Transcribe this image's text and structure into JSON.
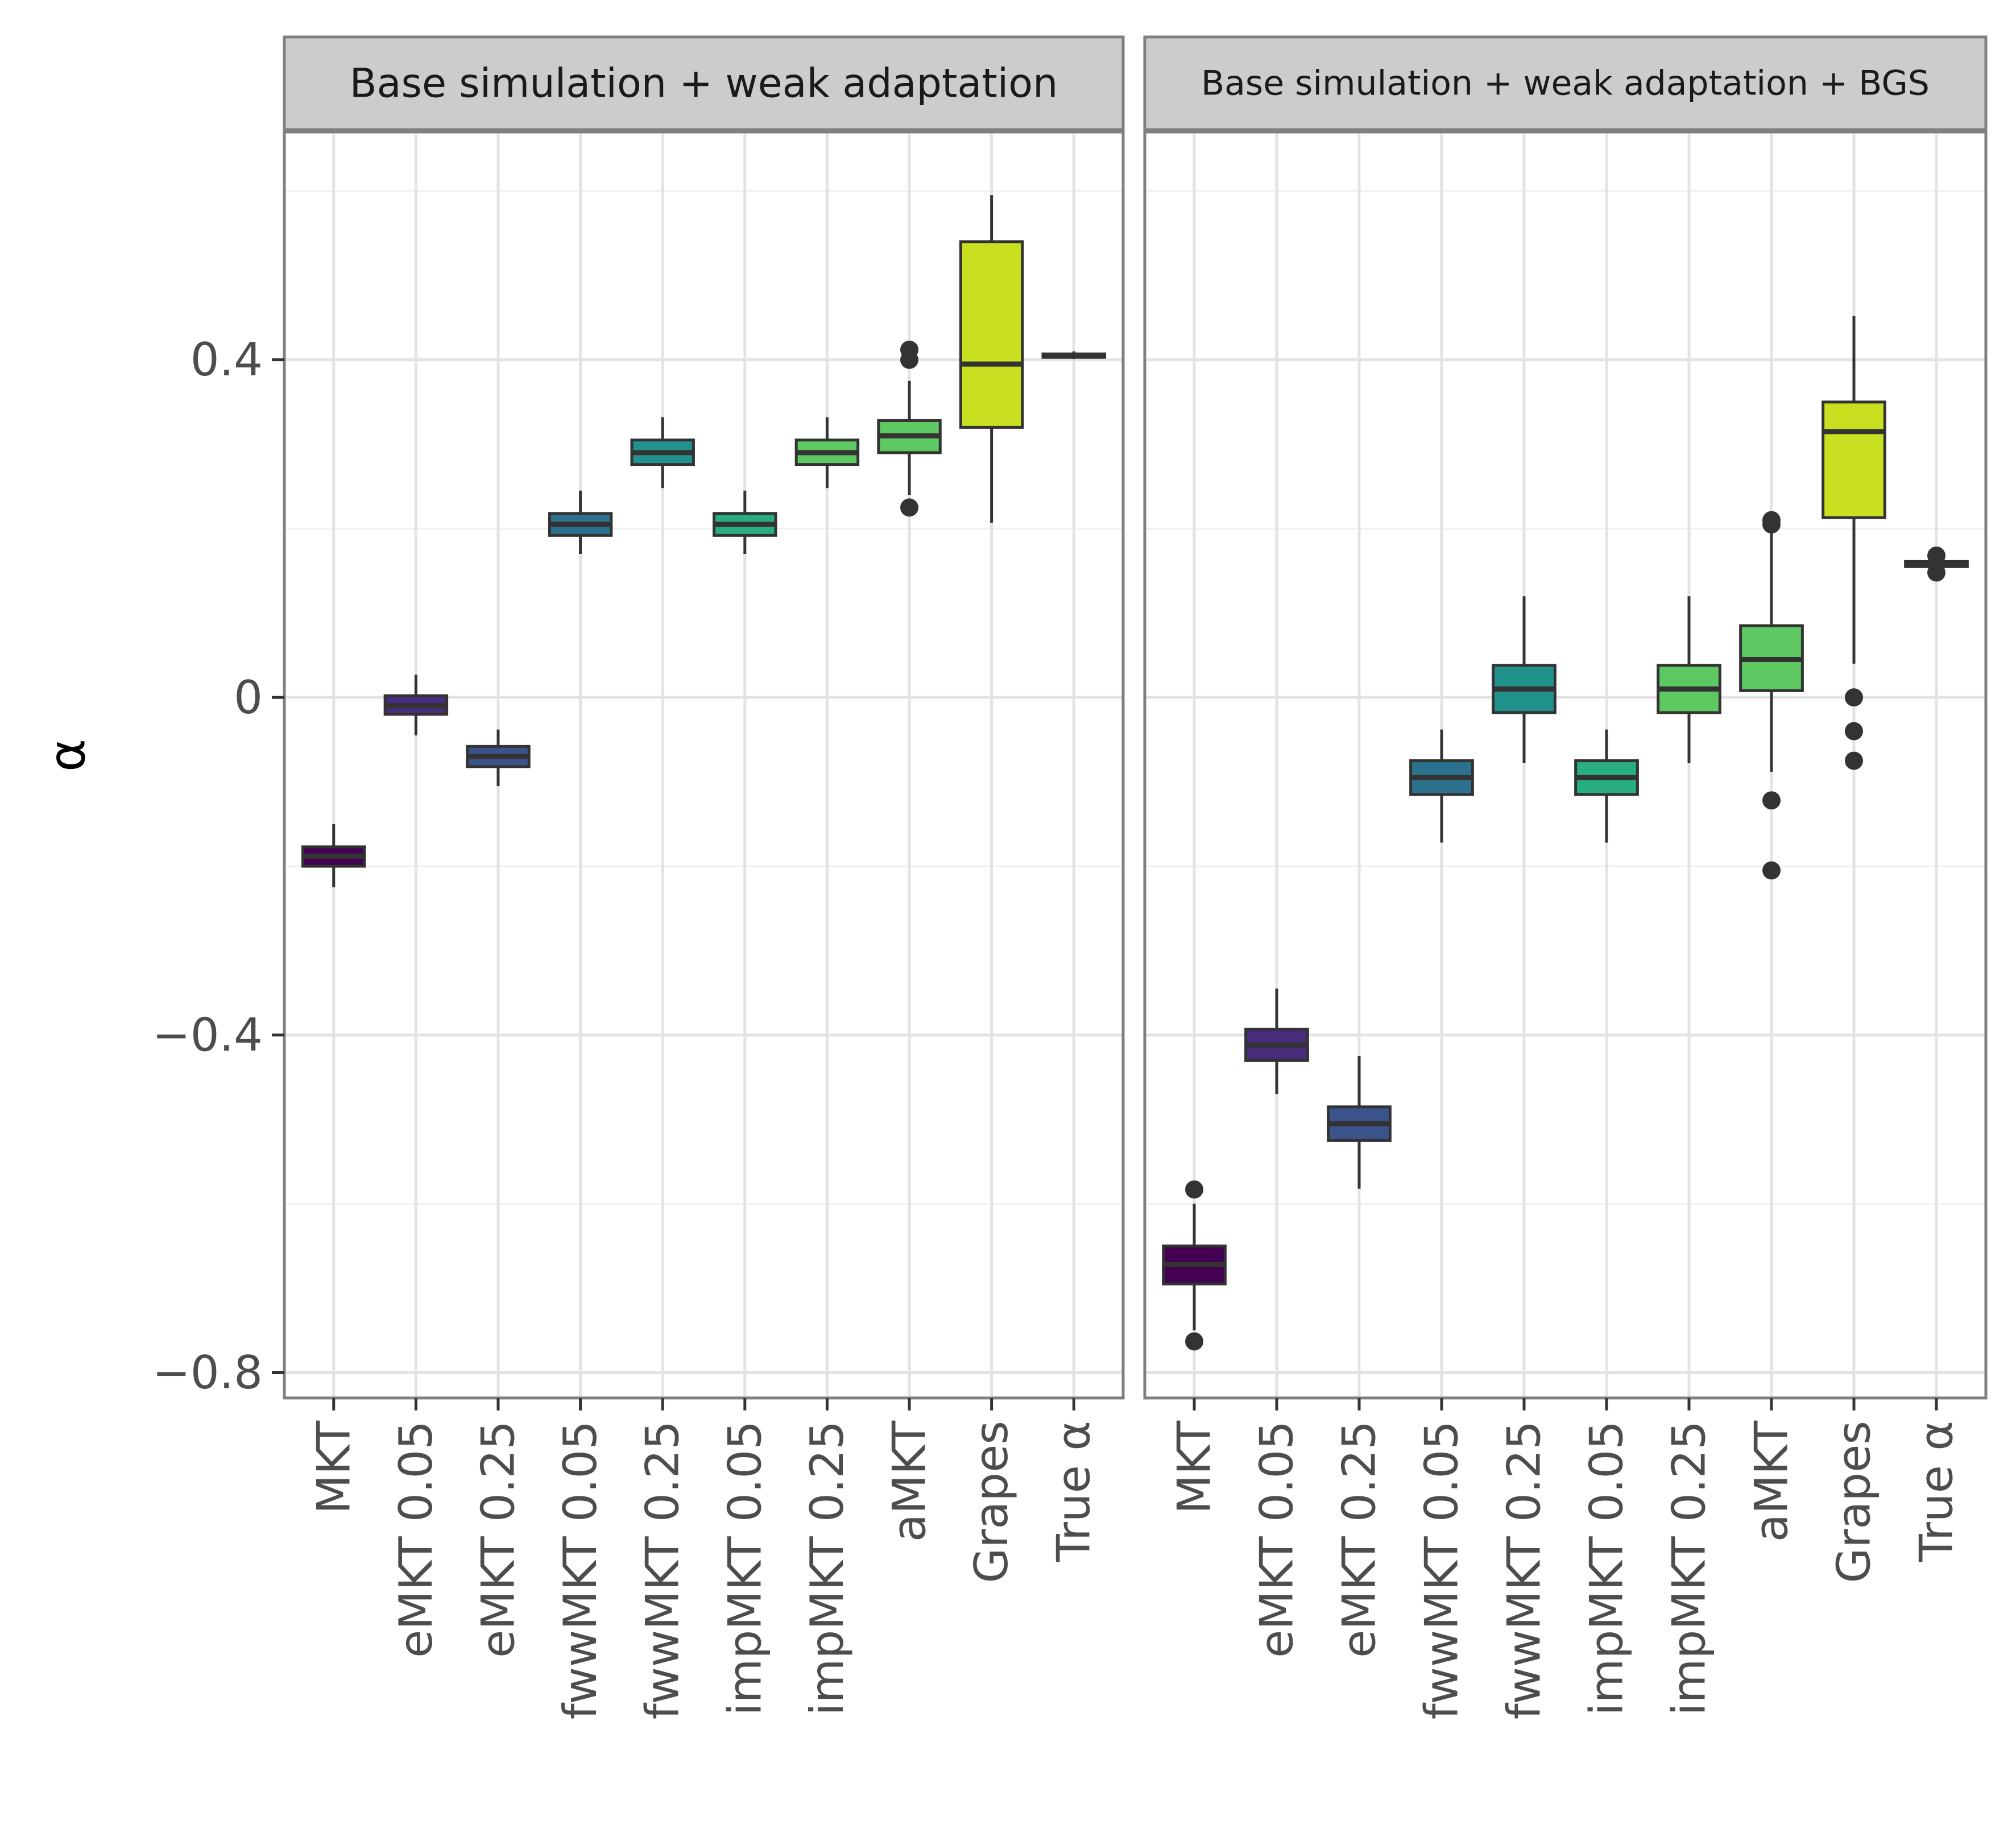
{
  "chart_data": {
    "type": "boxplot",
    "ylabel": "α",
    "xlabel": "",
    "ylim": [
      -0.83,
      0.67
    ],
    "y_ticks": [
      {
        "value": 0.4,
        "label": "0.4"
      },
      {
        "value": 0,
        "label": "0"
      },
      {
        "value": -0.4,
        "label": "−0.4"
      },
      {
        "value": -0.8,
        "label": "−0.8"
      }
    ],
    "y_minor_ticks": [
      0.6,
      0.2,
      -0.2,
      -0.6
    ],
    "grid": true,
    "legend": "none",
    "categories": [
      "MKT",
      "eMKT 0.05",
      "eMKT 0.25",
      "fwwMKT 0.05",
      "fwwMKT 0.25",
      "impMKT 0.05",
      "impMKT 0.25",
      "aMKT",
      "Grapes",
      "True α"
    ],
    "colors": [
      "#440154",
      "#482475",
      "#414487",
      "#355f8d",
      "#2a788e",
      "#21918c",
      "#22a884",
      "#44bf70",
      "#7ad151",
      "#bddf26",
      "#fde725"
    ],
    "category_colors": [
      "#440154",
      "#472d7b",
      "#3b528b",
      "#2c728e",
      "#21918c",
      "#28ae80",
      "#5ec962",
      "#5ec962",
      "#c8e020",
      "#fde725"
    ],
    "panels": [
      {
        "title": "Base simulation + weak adaptation",
        "boxes": [
          {
            "category": "MKT",
            "whisker_low": -0.225,
            "q1": -0.2,
            "median": -0.188,
            "q3": -0.177,
            "whisker_high": -0.15,
            "outliers": []
          },
          {
            "category": "eMKT 0.05",
            "whisker_low": -0.045,
            "q1": -0.02,
            "median": -0.01,
            "q3": 0.002,
            "whisker_high": 0.027,
            "outliers": []
          },
          {
            "category": "eMKT 0.25",
            "whisker_low": -0.105,
            "q1": -0.082,
            "median": -0.07,
            "q3": -0.058,
            "whisker_high": -0.038,
            "outliers": []
          },
          {
            "category": "fwwMKT 0.05",
            "whisker_low": 0.17,
            "q1": 0.192,
            "median": 0.205,
            "q3": 0.218,
            "whisker_high": 0.245,
            "outliers": []
          },
          {
            "category": "fwwMKT 0.25",
            "whisker_low": 0.248,
            "q1": 0.276,
            "median": 0.29,
            "q3": 0.305,
            "whisker_high": 0.332,
            "outliers": []
          },
          {
            "category": "impMKT 0.05",
            "whisker_low": 0.17,
            "q1": 0.192,
            "median": 0.205,
            "q3": 0.218,
            "whisker_high": 0.245,
            "outliers": []
          },
          {
            "category": "impMKT 0.25",
            "whisker_low": 0.248,
            "q1": 0.276,
            "median": 0.29,
            "q3": 0.305,
            "whisker_high": 0.332,
            "outliers": []
          },
          {
            "category": "aMKT",
            "whisker_low": 0.24,
            "q1": 0.29,
            "median": 0.31,
            "q3": 0.328,
            "whisker_high": 0.375,
            "outliers": [
              0.225,
              0.4,
              0.412
            ]
          },
          {
            "category": "Grapes",
            "whisker_low": 0.207,
            "q1": 0.32,
            "median": 0.395,
            "q3": 0.54,
            "whisker_high": 0.595,
            "outliers": []
          },
          {
            "category": "True α",
            "whisker_low": 0.401,
            "q1": 0.403,
            "median": 0.405,
            "q3": 0.407,
            "whisker_high": 0.41,
            "outliers": []
          }
        ]
      },
      {
        "title": "Base simulation + weak adaptation + BGS",
        "boxes": [
          {
            "category": "MKT",
            "whisker_low": -0.75,
            "q1": -0.695,
            "median": -0.672,
            "q3": -0.65,
            "whisker_high": -0.6,
            "outliers": [
              -0.583,
              -0.763
            ]
          },
          {
            "category": "eMKT 0.05",
            "whisker_low": -0.47,
            "q1": -0.43,
            "median": -0.412,
            "q3": -0.393,
            "whisker_high": -0.345,
            "outliers": []
          },
          {
            "category": "eMKT 0.25",
            "whisker_low": -0.582,
            "q1": -0.525,
            "median": -0.505,
            "q3": -0.485,
            "whisker_high": -0.425,
            "outliers": []
          },
          {
            "category": "fwwMKT 0.05",
            "whisker_low": -0.172,
            "q1": -0.115,
            "median": -0.095,
            "q3": -0.075,
            "whisker_high": -0.038,
            "outliers": []
          },
          {
            "category": "fwwMKT 0.25",
            "whisker_low": -0.078,
            "q1": -0.018,
            "median": 0.01,
            "q3": 0.038,
            "whisker_high": 0.12,
            "outliers": []
          },
          {
            "category": "impMKT 0.05",
            "whisker_low": -0.172,
            "q1": -0.115,
            "median": -0.095,
            "q3": -0.075,
            "whisker_high": -0.038,
            "outliers": []
          },
          {
            "category": "impMKT 0.25",
            "whisker_low": -0.078,
            "q1": -0.018,
            "median": 0.01,
            "q3": 0.038,
            "whisker_high": 0.12,
            "outliers": []
          },
          {
            "category": "aMKT",
            "whisker_low": -0.088,
            "q1": 0.008,
            "median": 0.045,
            "q3": 0.085,
            "whisker_high": 0.195,
            "outliers": [
              -0.122,
              -0.205,
              0.205,
              0.21
            ]
          },
          {
            "category": "Grapes",
            "whisker_low": 0.04,
            "q1": 0.213,
            "median": 0.315,
            "q3": 0.35,
            "whisker_high": 0.452,
            "outliers": [
              0.0,
              -0.04,
              -0.075
            ]
          },
          {
            "category": "True α",
            "whisker_low": 0.152,
            "q1": 0.155,
            "median": 0.158,
            "q3": 0.161,
            "whisker_high": 0.165,
            "outliers": [
              0.148,
              0.168
            ]
          }
        ]
      }
    ]
  }
}
